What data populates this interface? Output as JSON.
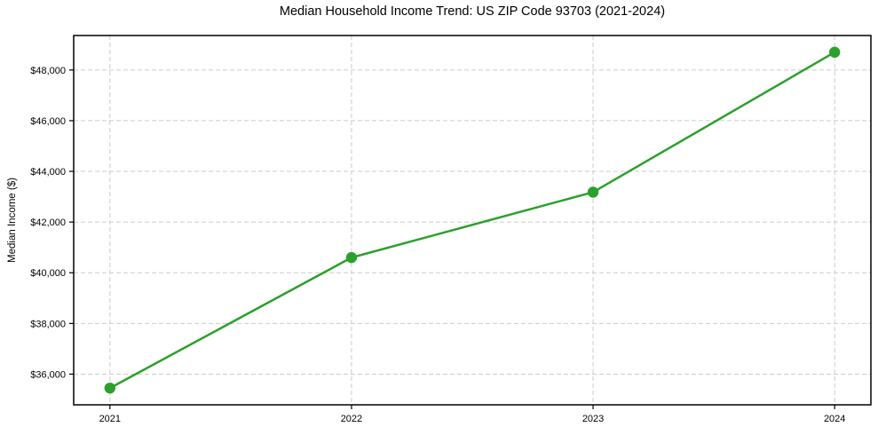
{
  "chart_data": {
    "type": "line",
    "title": "Median Household Income Trend: US ZIP Code 93703 (2021-2024)",
    "xlabel": "",
    "ylabel": "Median Income ($)",
    "x": [
      2021,
      2022,
      2023,
      2024
    ],
    "series": [
      {
        "name": "Median Household Income",
        "values": [
          35450,
          40600,
          43180,
          48700
        ]
      }
    ],
    "x_tick_labels": [
      "2021",
      "2022",
      "2023",
      "2024"
    ],
    "y_ticks": [
      36000,
      38000,
      40000,
      42000,
      44000,
      46000,
      48000
    ],
    "y_tick_labels": [
      "$36,000",
      "$38,000",
      "$40,000",
      "$42,000",
      "$44,000",
      "$46,000",
      "$48,000"
    ],
    "xlim": [
      2020.85,
      2024.15
    ],
    "ylim": [
      34790,
      49360
    ],
    "grid": true,
    "grid_style": "dashed",
    "legend": "none",
    "colors": {
      "line": "#2ca02c",
      "marker": "#2ca02c",
      "grid": "#cccccc",
      "spine": "#000000",
      "text": "#000000",
      "background": "#ffffff"
    }
  }
}
